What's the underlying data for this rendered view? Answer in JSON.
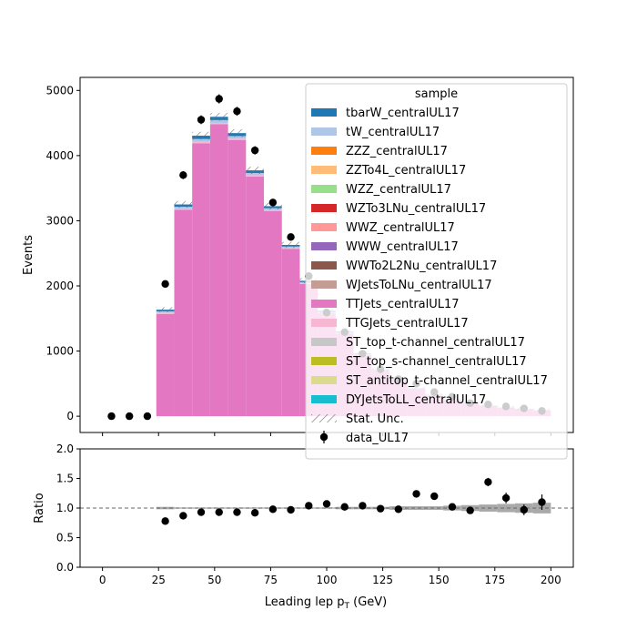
{
  "chart_data": {
    "type": "bar",
    "top_panel": {
      "ylabel": "Events",
      "ylim": [
        -250,
        5200
      ],
      "yticks": [
        0,
        1000,
        2000,
        3000,
        4000,
        5000
      ],
      "ytick_labels": [
        "0",
        "1000",
        "2000",
        "3000",
        "4000",
        "5000"
      ],
      "grid": false,
      "bin_edges": [
        24,
        32,
        40,
        48,
        56,
        64,
        72,
        80,
        88,
        96,
        104,
        112,
        120,
        128,
        136,
        144,
        152,
        160,
        168,
        176,
        184,
        192,
        200
      ],
      "series": [
        {
          "name": "TTJets_centralUL17",
          "color": "#e377c2",
          "values": [
            1570,
            3170,
            4190,
            4480,
            4240,
            3680,
            3150,
            2570,
            2030,
            1580,
            1270,
            940,
            700,
            560,
            420,
            320,
            250,
            200,
            160,
            130,
            110,
            90
          ]
        },
        {
          "name": "TTGJets_centralUL17",
          "color": "#f7b6d2",
          "values": [
            15,
            15,
            20,
            20,
            20,
            18,
            15,
            12,
            10,
            8,
            6,
            5,
            4,
            3,
            3,
            2,
            2,
            2,
            1,
            1,
            1,
            1
          ]
        },
        {
          "name": "tW_centralUL17",
          "color": "#aec7e8",
          "values": [
            25,
            30,
            45,
            45,
            40,
            35,
            28,
            22,
            18,
            14,
            10,
            8,
            6,
            5,
            4,
            3,
            3,
            2,
            2,
            2,
            1,
            1
          ]
        },
        {
          "name": "tbarW_centralUL17",
          "color": "#1f77b4",
          "values": [
            25,
            35,
            50,
            50,
            45,
            40,
            30,
            25,
            20,
            15,
            12,
            9,
            7,
            5,
            4,
            3,
            3,
            2,
            2,
            2,
            1,
            1
          ]
        }
      ],
      "stat_unc_label": "Stat. Unc.",
      "data": {
        "name": "data_UL17",
        "x": [
          4,
          12,
          20,
          28,
          36,
          44,
          52,
          60,
          68,
          76,
          84,
          92,
          100,
          108,
          116,
          124,
          132,
          140,
          148,
          156,
          164,
          172,
          180,
          188,
          196
        ],
        "y": [
          0,
          0,
          0,
          2030,
          3700,
          4550,
          4870,
          4680,
          4080,
          3280,
          2750,
          2150,
          1590,
          1290,
          960,
          720,
          570,
          500,
          370,
          300,
          200,
          180,
          150,
          120,
          80
        ]
      }
    },
    "legend": {
      "title": "sample",
      "placement": "upper right",
      "entries": [
        {
          "label": "tbarW_centralUL17",
          "color": "#1f77b4",
          "kind": "patch"
        },
        {
          "label": "tW_centralUL17",
          "color": "#aec7e8",
          "kind": "patch"
        },
        {
          "label": "ZZZ_centralUL17",
          "color": "#ff7f0e",
          "kind": "patch"
        },
        {
          "label": "ZZTo4L_centralUL17",
          "color": "#ffbb78",
          "kind": "patch"
        },
        {
          "label": "WZZ_centralUL17",
          "color": "#98df8a",
          "kind": "patch"
        },
        {
          "label": "WZTo3LNu_centralUL17",
          "color": "#d62728",
          "kind": "patch"
        },
        {
          "label": "WWZ_centralUL17",
          "color": "#ff9896",
          "kind": "patch"
        },
        {
          "label": "WWW_centralUL17",
          "color": "#9467bd",
          "kind": "patch"
        },
        {
          "label": "WWTo2L2Nu_centralUL17",
          "color": "#8c564b",
          "kind": "patch"
        },
        {
          "label": "WJetsToLNu_centralUL17",
          "color": "#c49c94",
          "kind": "patch"
        },
        {
          "label": "TTJets_centralUL17",
          "color": "#e377c2",
          "kind": "patch"
        },
        {
          "label": "TTGJets_centralUL17",
          "color": "#f7b6d2",
          "kind": "patch"
        },
        {
          "label": "ST_top_t-channel_centralUL17",
          "color": "#c7c7c7",
          "kind": "patch"
        },
        {
          "label": "ST_top_s-channel_centralUL17",
          "color": "#bcbd22",
          "kind": "patch"
        },
        {
          "label": "ST_antitop_t-channel_centralUL17",
          "color": "#dbdb8d",
          "kind": "patch"
        },
        {
          "label": "DYJetsToLL_centralUL17",
          "color": "#17becf",
          "kind": "patch"
        },
        {
          "label": "Stat. Unc.",
          "color": "#808080",
          "kind": "hatch"
        },
        {
          "label": "data_UL17",
          "color": "#000000",
          "kind": "marker"
        }
      ]
    },
    "ratio_panel": {
      "ylabel": "Ratio",
      "ylim": [
        0,
        2
      ],
      "yticks": [
        0,
        0.5,
        1,
        1.5,
        2
      ],
      "ytick_labels": [
        "0.0",
        "0.5",
        "1.0",
        "1.5",
        "2.0"
      ],
      "reference_line": 1.0,
      "x": [
        28,
        36,
        44,
        52,
        60,
        68,
        76,
        84,
        92,
        100,
        108,
        116,
        124,
        132,
        140,
        148,
        156,
        164,
        172,
        180,
        188,
        196
      ],
      "y": [
        0.78,
        0.87,
        0.93,
        0.93,
        0.93,
        0.92,
        0.98,
        0.97,
        1.04,
        1.07,
        1.02,
        1.04,
        0.99,
        0.98,
        1.24,
        1.2,
        1.02,
        0.96,
        1.44,
        1.17,
        0.97,
        1.1
      ],
      "err": [
        0.02,
        0.02,
        0.02,
        0.02,
        0.02,
        0.02,
        0.02,
        0.02,
        0.03,
        0.03,
        0.03,
        0.03,
        0.04,
        0.04,
        0.04,
        0.05,
        0.05,
        0.06,
        0.07,
        0.09,
        0.09,
        0.13
      ],
      "unc_band_halfwidth": [
        0.02,
        0.01,
        0.01,
        0.01,
        0.01,
        0.01,
        0.01,
        0.01,
        0.01,
        0.01,
        0.02,
        0.02,
        0.02,
        0.03,
        0.03,
        0.03,
        0.04,
        0.05,
        0.06,
        0.07,
        0.08,
        0.09
      ]
    },
    "xlabel": "Leading lep p",
    "xlabel_sub": "T",
    "xlabel_unit": " (GeV)",
    "xlim": [
      -10,
      210
    ],
    "xticks": [
      0,
      25,
      50,
      75,
      100,
      125,
      150,
      175,
      200
    ],
    "xtick_labels": [
      "0",
      "25",
      "50",
      "75",
      "100",
      "125",
      "150",
      "175",
      "200"
    ]
  }
}
